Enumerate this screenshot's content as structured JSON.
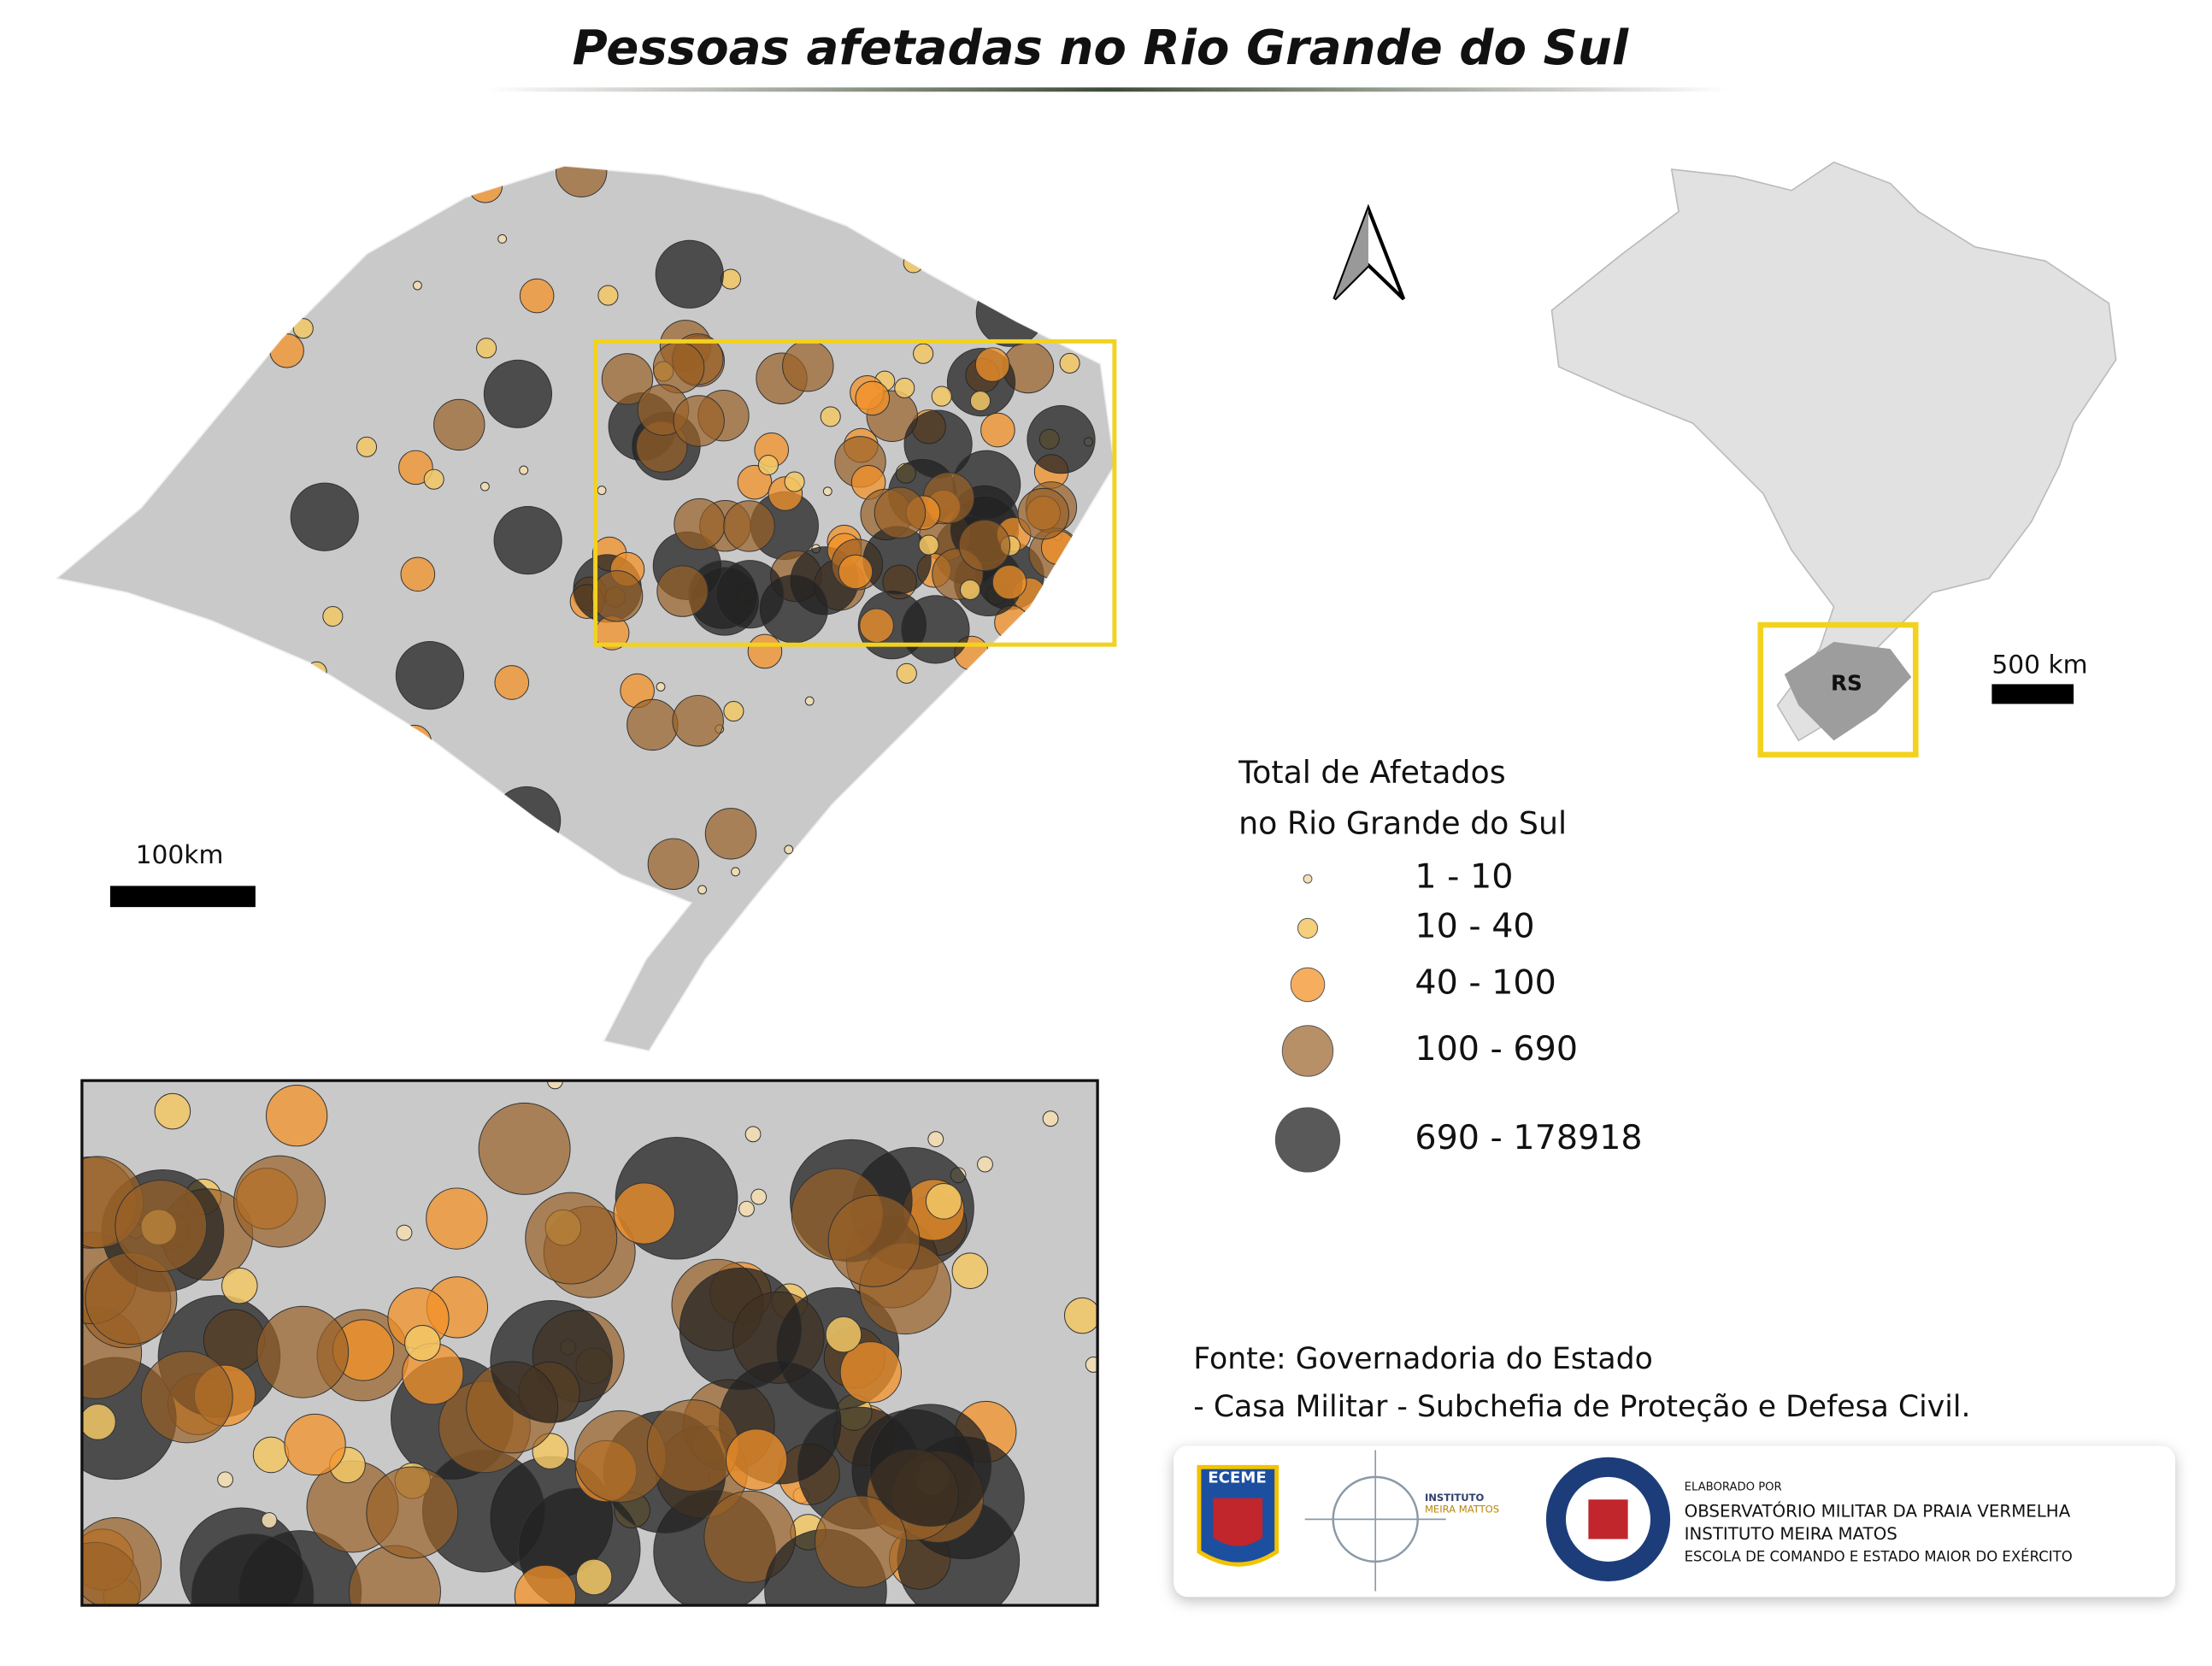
{
  "title": "Pessoas afetadas no Rio Grande do Sul",
  "scale_main": "100km",
  "scale_brazil": "500 km",
  "inset_label": "RS",
  "legend": {
    "title_lines": [
      "Total de Afetados",
      "no Rio Grande do Sul"
    ],
    "items": [
      "1 - 10",
      "10 - 40",
      "40 - 100",
      "100 - 690",
      "690 - 178918"
    ]
  },
  "source": [
    "Fonte: Governadoria do Estado",
    "- Casa Militar - Subchefia de Proteção e Defesa Civil."
  ],
  "credits": {
    "eceme": "ECEME",
    "instituto": [
      "INSTITUTO",
      "MEIRA MATTOS"
    ],
    "elaborado": "ELABORADO POR",
    "orgs": [
      "OBSERVATÓRIO MILITAR DA PRAIA VERMELHA",
      "INSTITUTO MEIRA MATOS",
      "ESCOLA DE COMANDO E ESTADO MAIOR DO EXÉRCITO"
    ]
  }
}
